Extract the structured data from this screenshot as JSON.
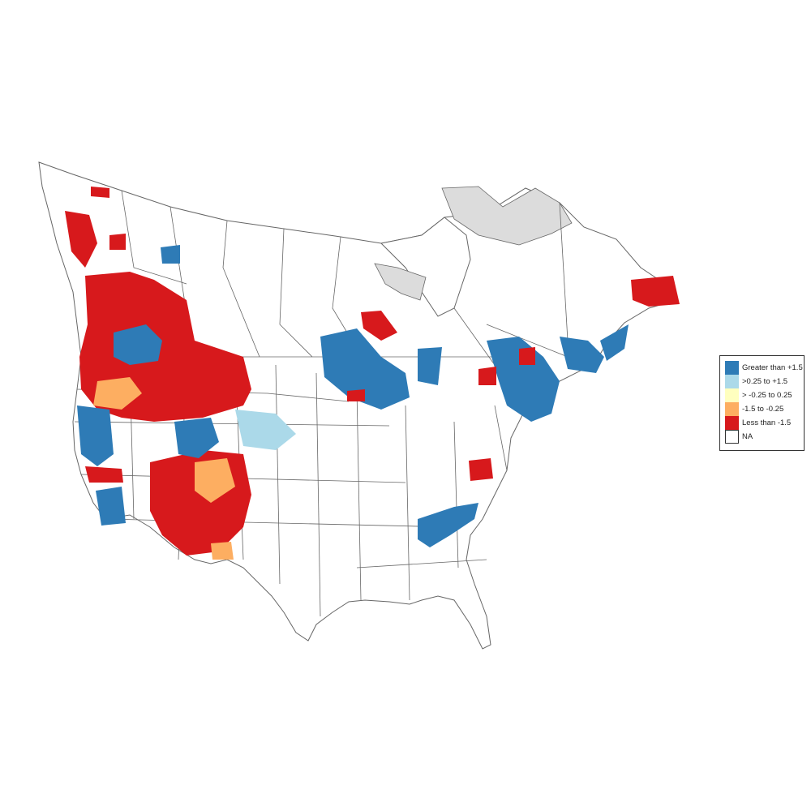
{
  "legend": {
    "items": [
      {
        "label": "Greater than +1.5",
        "color": "#2e7bb6"
      },
      {
        "label": ">0.25 to +1.5",
        "color": "#abd9e9"
      },
      {
        "label": "> -0.25 to 0.25",
        "color": "#ffffbf"
      },
      {
        "label": "-1.5 to -0.25",
        "color": "#fdae61"
      },
      {
        "label": "Less than -1.5",
        "color": "#d7191c"
      },
      {
        "label": "NA",
        "color": "#ffffff"
      }
    ]
  },
  "colors": {
    "boundary": "#666666",
    "no_data_region": "#dcdcdc"
  }
}
